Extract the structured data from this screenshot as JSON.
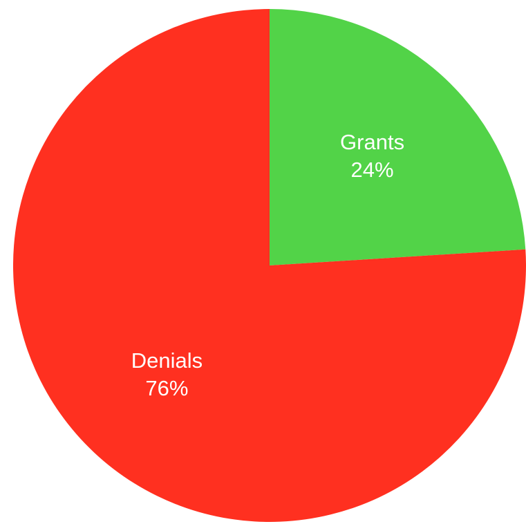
{
  "chart_data": {
    "type": "pie",
    "title": "",
    "start_angle_deg": 0,
    "direction": "clockwise",
    "slices": [
      {
        "name": "Grants",
        "value": 24,
        "label": "24%",
        "color": "#52d348"
      },
      {
        "name": "Denials",
        "value": 76,
        "label": "76%",
        "color": "#ff3020"
      }
    ]
  }
}
